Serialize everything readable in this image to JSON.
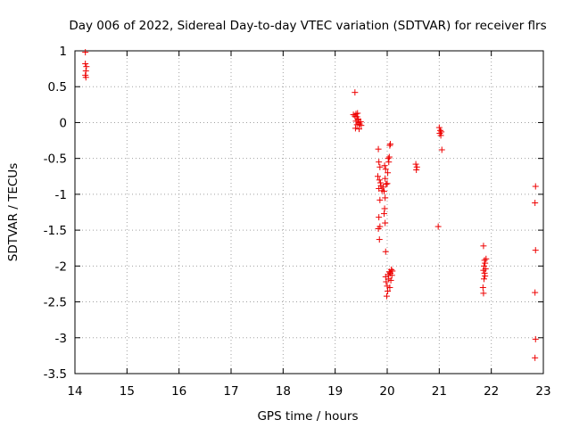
{
  "chart_data": {
    "type": "scatter",
    "title": "Day 006 of 2022, Sidereal Day-to-day VTEC variation (SDTVAR) for receiver flrs",
    "xlabel": "GPS time / hours",
    "ylabel": "SDTVAR / TECUs",
    "xlim": [
      14,
      23
    ],
    "ylim": [
      -3.5,
      1
    ],
    "x_ticks": [
      "14",
      "15",
      "16",
      "17",
      "18",
      "19",
      "20",
      "21",
      "22",
      "23"
    ],
    "y_ticks": [
      "1",
      "0.5",
      "0",
      "-0.5",
      "-1",
      "-1.5",
      "-2",
      "-2.5",
      "-3",
      "-3.5"
    ],
    "grid": true,
    "marker": "+",
    "color": "#ee0000",
    "series": [
      {
        "name": "SDTVAR",
        "points": [
          [
            14.2,
            0.98
          ],
          [
            14.2,
            0.82
          ],
          [
            14.22,
            0.78
          ],
          [
            14.21,
            0.72
          ],
          [
            14.2,
            0.66
          ],
          [
            14.21,
            0.63
          ],
          [
            19.38,
            0.42
          ],
          [
            19.35,
            0.11
          ],
          [
            19.38,
            0.09
          ],
          [
            19.4,
            0.12
          ],
          [
            19.42,
            0.08
          ],
          [
            19.43,
            0.13
          ],
          [
            19.44,
            0.05
          ],
          [
            19.4,
            0.02
          ],
          [
            19.45,
            0.0
          ],
          [
            19.47,
            -0.02
          ],
          [
            19.49,
            0.01
          ],
          [
            19.5,
            -0.04
          ],
          [
            19.42,
            -0.03
          ],
          [
            19.39,
            -0.08
          ],
          [
            19.46,
            -0.09
          ],
          [
            19.44,
            0.04
          ],
          [
            19.83,
            -0.37
          ],
          [
            19.84,
            -0.55
          ],
          [
            19.86,
            -0.62
          ],
          [
            19.82,
            -0.75
          ],
          [
            19.85,
            -0.8
          ],
          [
            19.87,
            -0.84
          ],
          [
            19.88,
            -0.88
          ],
          [
            19.84,
            -0.92
          ],
          [
            19.9,
            -0.95
          ],
          [
            19.92,
            -0.9
          ],
          [
            19.86,
            -1.08
          ],
          [
            19.84,
            -1.32
          ],
          [
            19.86,
            -1.45
          ],
          [
            19.83,
            -1.48
          ],
          [
            19.85,
            -1.63
          ],
          [
            19.95,
            -0.6
          ],
          [
            19.97,
            -0.65
          ],
          [
            19.96,
            -0.78
          ],
          [
            19.98,
            -0.86
          ],
          [
            19.94,
            -0.96
          ],
          [
            19.96,
            -1.05
          ],
          [
            19.95,
            -1.2
          ],
          [
            19.94,
            -1.27
          ],
          [
            19.96,
            -1.4
          ],
          [
            19.97,
            -1.8
          ],
          [
            20.02,
            -0.5
          ],
          [
            20.03,
            -0.55
          ],
          [
            20.05,
            -0.32
          ],
          [
            20.06,
            -0.3
          ],
          [
            20.04,
            -0.48
          ],
          [
            20.01,
            -0.7
          ],
          [
            20.0,
            -0.85
          ],
          [
            19.97,
            -2.15
          ],
          [
            19.98,
            -2.22
          ],
          [
            20.0,
            -2.28
          ],
          [
            20.01,
            -2.35
          ],
          [
            19.99,
            -2.42
          ],
          [
            20.02,
            -2.12
          ],
          [
            20.04,
            -2.08
          ],
          [
            20.06,
            -2.1
          ],
          [
            20.08,
            -2.05
          ],
          [
            20.1,
            -2.07
          ],
          [
            20.07,
            -2.2
          ],
          [
            20.05,
            -2.3
          ],
          [
            20.03,
            -2.18
          ],
          [
            20.09,
            -2.13
          ],
          [
            20.55,
            -0.58
          ],
          [
            20.57,
            -0.62
          ],
          [
            20.56,
            -0.66
          ],
          [
            20.98,
            -1.45
          ],
          [
            21.0,
            -0.07
          ],
          [
            21.02,
            -0.11
          ],
          [
            21.01,
            -0.15
          ],
          [
            21.03,
            -0.18
          ],
          [
            21.04,
            -0.13
          ],
          [
            21.05,
            -0.38
          ],
          [
            21.85,
            -1.72
          ],
          [
            21.87,
            -1.92
          ],
          [
            21.88,
            -1.96
          ],
          [
            21.86,
            -2.0
          ],
          [
            21.85,
            -2.06
          ],
          [
            21.87,
            -2.1
          ],
          [
            21.89,
            -2.04
          ],
          [
            21.9,
            -1.9
          ],
          [
            21.84,
            -2.3
          ],
          [
            21.85,
            -2.38
          ],
          [
            21.88,
            -2.14
          ],
          [
            21.86,
            -2.18
          ],
          [
            22.85,
            -0.89
          ],
          [
            22.84,
            -1.12
          ],
          [
            22.85,
            -1.78
          ],
          [
            22.84,
            -2.37
          ],
          [
            22.85,
            -3.02
          ],
          [
            22.84,
            -3.28
          ]
        ]
      }
    ]
  }
}
